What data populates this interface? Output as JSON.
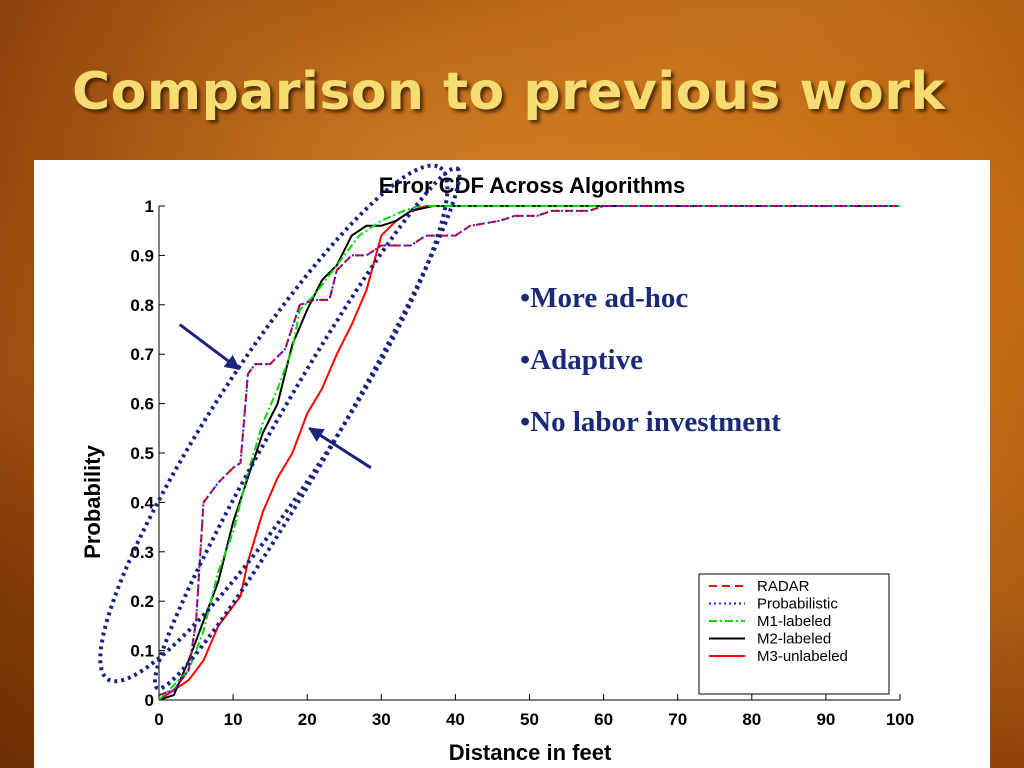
{
  "slide": {
    "title": "Comparison to previous work",
    "bullets": [
      "More ad-hoc",
      "Adaptive",
      "No labor investment"
    ]
  },
  "chart_data": {
    "type": "line",
    "title": "Error CDF Across Algorithms",
    "xlabel": "Distance in feet",
    "ylabel": "Probability",
    "xlim": [
      0,
      100
    ],
    "ylim": [
      0,
      1
    ],
    "xticks": [
      0,
      10,
      20,
      30,
      40,
      50,
      60,
      70,
      80,
      90,
      100
    ],
    "yticks": [
      0,
      0.1,
      0.2,
      0.3,
      0.4,
      0.5,
      0.6,
      0.7,
      0.8,
      0.9,
      1
    ],
    "grid": false,
    "legend_position": "bottom-right",
    "series": [
      {
        "name": "RADAR",
        "color": "#ff0000",
        "dash": "8,5",
        "points": [
          [
            0,
            0.01
          ],
          [
            2,
            0.02
          ],
          [
            4,
            0.06
          ],
          [
            5,
            0.16
          ],
          [
            6,
            0.4
          ],
          [
            8,
            0.44
          ],
          [
            10,
            0.47
          ],
          [
            11,
            0.48
          ],
          [
            12,
            0.66
          ],
          [
            13,
            0.68
          ],
          [
            15,
            0.68
          ],
          [
            17,
            0.71
          ],
          [
            19,
            0.8
          ],
          [
            21,
            0.81
          ],
          [
            23,
            0.81
          ],
          [
            24,
            0.87
          ],
          [
            26,
            0.9
          ],
          [
            28,
            0.9
          ],
          [
            30,
            0.92
          ],
          [
            34,
            0.92
          ],
          [
            36,
            0.94
          ],
          [
            40,
            0.94
          ],
          [
            42,
            0.96
          ],
          [
            46,
            0.97
          ],
          [
            48,
            0.98
          ],
          [
            51,
            0.98
          ],
          [
            53,
            0.99
          ],
          [
            58,
            0.99
          ],
          [
            60,
            1.0
          ],
          [
            100,
            1.0
          ]
        ]
      },
      {
        "name": "Probabilistic",
        "color": "#1a1aff",
        "dash": "2,3",
        "points": [
          [
            0,
            0.01
          ],
          [
            2,
            0.02
          ],
          [
            4,
            0.06
          ],
          [
            5,
            0.16
          ],
          [
            6,
            0.4
          ],
          [
            8,
            0.44
          ],
          [
            10,
            0.47
          ],
          [
            11,
            0.48
          ],
          [
            12,
            0.66
          ],
          [
            13,
            0.68
          ],
          [
            15,
            0.68
          ],
          [
            17,
            0.71
          ],
          [
            19,
            0.8
          ],
          [
            21,
            0.81
          ],
          [
            23,
            0.81
          ],
          [
            24,
            0.87
          ],
          [
            26,
            0.9
          ],
          [
            28,
            0.9
          ],
          [
            30,
            0.92
          ],
          [
            34,
            0.92
          ],
          [
            36,
            0.94
          ],
          [
            40,
            0.94
          ],
          [
            42,
            0.96
          ],
          [
            46,
            0.97
          ],
          [
            48,
            0.98
          ],
          [
            51,
            0.98
          ],
          [
            53,
            0.99
          ],
          [
            58,
            0.99
          ],
          [
            60,
            1.0
          ],
          [
            100,
            1.0
          ]
        ]
      },
      {
        "name": "M1-labeled",
        "color": "#00dd00",
        "dash": "8,3,2,3",
        "points": [
          [
            0,
            0.0
          ],
          [
            2,
            0.03
          ],
          [
            4,
            0.06
          ],
          [
            6,
            0.14
          ],
          [
            8,
            0.26
          ],
          [
            10,
            0.34
          ],
          [
            12,
            0.46
          ],
          [
            14,
            0.56
          ],
          [
            16,
            0.63
          ],
          [
            18,
            0.71
          ],
          [
            19,
            0.79
          ],
          [
            21,
            0.82
          ],
          [
            23,
            0.86
          ],
          [
            25,
            0.9
          ],
          [
            27,
            0.94
          ],
          [
            30,
            0.97
          ],
          [
            33,
            0.99
          ],
          [
            35,
            1.0
          ],
          [
            100,
            1.0
          ]
        ]
      },
      {
        "name": "M2-labeled",
        "color": "#000000",
        "dash": "",
        "points": [
          [
            0,
            0.0
          ],
          [
            2,
            0.01
          ],
          [
            4,
            0.08
          ],
          [
            6,
            0.16
          ],
          [
            8,
            0.24
          ],
          [
            10,
            0.36
          ],
          [
            12,
            0.45
          ],
          [
            14,
            0.54
          ],
          [
            16,
            0.6
          ],
          [
            18,
            0.72
          ],
          [
            20,
            0.79
          ],
          [
            22,
            0.85
          ],
          [
            24,
            0.88
          ],
          [
            26,
            0.94
          ],
          [
            28,
            0.96
          ],
          [
            30,
            0.96
          ],
          [
            32,
            0.97
          ],
          [
            34,
            0.99
          ],
          [
            37,
            1.0
          ],
          [
            100,
            1.0
          ]
        ]
      },
      {
        "name": "M3-unlabeled",
        "color": "#ff0000",
        "dash": "",
        "points": [
          [
            0,
            0.0
          ],
          [
            2,
            0.02
          ],
          [
            4,
            0.04
          ],
          [
            6,
            0.08
          ],
          [
            8,
            0.15
          ],
          [
            10,
            0.19
          ],
          [
            11,
            0.21
          ],
          [
            12,
            0.28
          ],
          [
            14,
            0.38
          ],
          [
            16,
            0.45
          ],
          [
            18,
            0.5
          ],
          [
            20,
            0.58
          ],
          [
            22,
            0.63
          ],
          [
            24,
            0.7
          ],
          [
            26,
            0.76
          ],
          [
            28,
            0.83
          ],
          [
            30,
            0.94
          ],
          [
            32,
            0.97
          ],
          [
            34,
            0.99
          ],
          [
            36,
            1.0
          ],
          [
            100,
            1.0
          ]
        ]
      }
    ],
    "annotations": [
      {
        "type": "ellipse",
        "description": "dotted outline around left curves",
        "color": "#1a237e"
      },
      {
        "type": "ellipse",
        "description": "dotted outline around right curves",
        "color": "#1a237e"
      },
      {
        "type": "arrow",
        "color": "#1a237e"
      },
      {
        "type": "arrow",
        "color": "#1a237e"
      }
    ]
  }
}
